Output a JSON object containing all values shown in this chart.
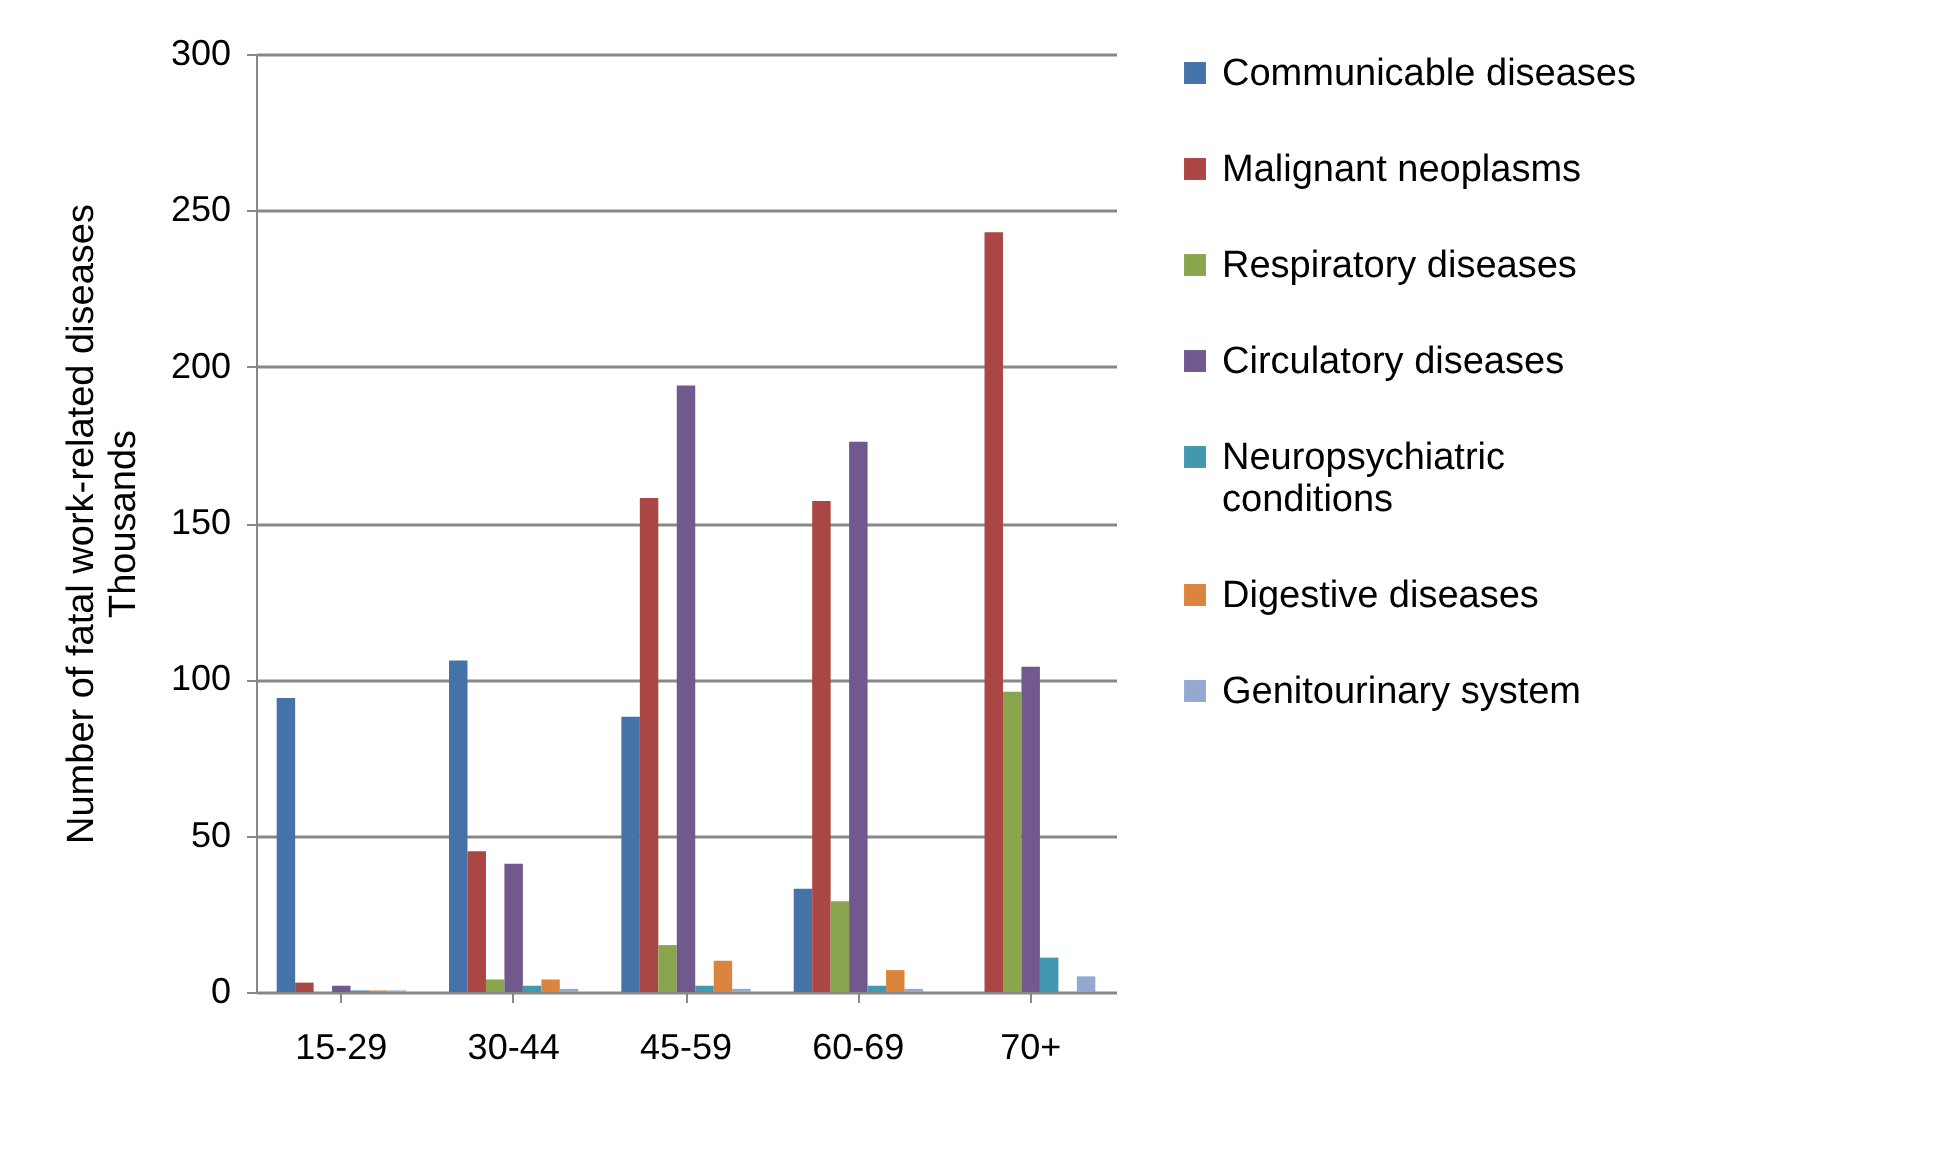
{
  "chart_data": {
    "type": "bar",
    "ylabel": "Number of fatal work-related diseases",
    "annotations": [
      "Thousands"
    ],
    "categories": [
      "15-29",
      "30-44",
      "45-59",
      "60-69",
      "70+"
    ],
    "series": [
      {
        "name": "Communicable diseases",
        "color": "#4572a7",
        "values": [
          94,
          106,
          88,
          33,
          0
        ]
      },
      {
        "name": "Malignant neoplasms",
        "color": "#aa4643",
        "values": [
          3,
          45,
          158,
          157,
          243
        ]
      },
      {
        "name": "Respiratory diseases",
        "color": "#89a54e",
        "values": [
          null,
          4,
          15,
          29,
          96
        ]
      },
      {
        "name": "Circulatory diseases",
        "color": "#71588f",
        "values": [
          2,
          41,
          194,
          176,
          104
        ]
      },
      {
        "name": "Neuropsychiatric conditions",
        "color": "#4198af",
        "values": [
          0.5,
          2,
          2,
          2,
          11
        ]
      },
      {
        "name": "Digestive diseases",
        "color": "#db843d",
        "values": [
          0.5,
          4,
          10,
          7,
          0
        ]
      },
      {
        "name": "Genitourinary system",
        "color": "#93a9cf",
        "values": [
          0.5,
          1,
          1,
          1,
          5
        ]
      }
    ],
    "ylim": [
      0,
      300
    ],
    "yticks": [
      0,
      50,
      100,
      150,
      200,
      250,
      300
    ],
    "grid": "y",
    "legend": "right"
  }
}
